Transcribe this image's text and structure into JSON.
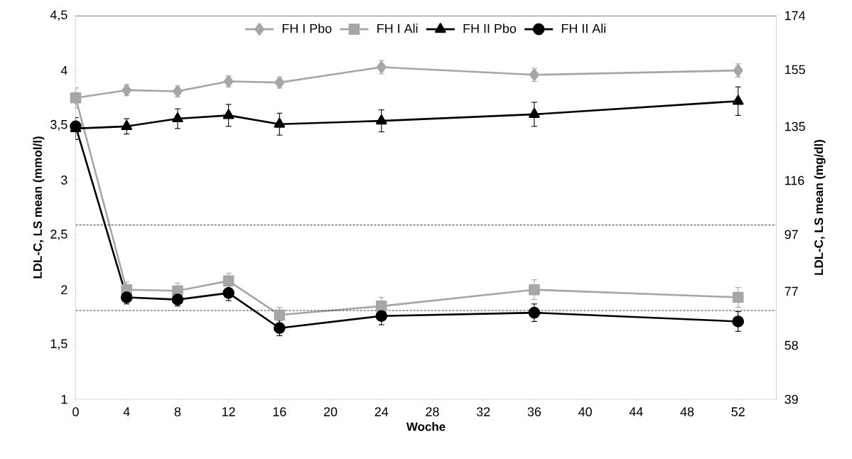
{
  "chart_data": {
    "type": "line",
    "xlabel": "Woche",
    "ylabel": "LDL-C, LS mean (mmol/l)",
    "y2label": "LDL-C, LS mean (mg/dl)",
    "xlim": [
      0,
      55
    ],
    "xticks": [
      0,
      4,
      8,
      12,
      16,
      20,
      24,
      28,
      32,
      36,
      40,
      44,
      48,
      52
    ],
    "ylim": [
      1,
      4.5
    ],
    "yticks": [
      1,
      {
        "value": 1.5,
        "label": "1,5"
      },
      2,
      {
        "value": 2.5,
        "label": "2,5"
      },
      3,
      {
        "value": 3.5,
        "label": "3,5"
      },
      4,
      {
        "value": 4.5,
        "label": "4,5"
      }
    ],
    "y2lim": [
      39,
      174
    ],
    "y2ticks": [
      39,
      58,
      77,
      97,
      116,
      135,
      155,
      174
    ],
    "grid": false,
    "legend": "top",
    "ref_lines": [
      {
        "axis": "y",
        "value": 2.59,
        "color": "#000000",
        "line_style": "dashed"
      },
      {
        "axis": "y",
        "value": 1.81,
        "color": "#000000",
        "line_style": "dashed"
      }
    ],
    "series": [
      {
        "name": "FH I Pbo",
        "color": "#a6a6a6",
        "marker": "diamond",
        "x": [
          0,
          4,
          8,
          12,
          16,
          24,
          36,
          52
        ],
        "values": [
          3.75,
          3.82,
          3.81,
          3.9,
          3.89,
          4.03,
          3.96,
          4.0
        ],
        "errors": [
          0.09,
          0.05,
          0.05,
          0.05,
          0.05,
          0.06,
          0.06,
          0.06
        ]
      },
      {
        "name": "FH I Ali",
        "color": "#a6a6a6",
        "marker": "square",
        "x": [
          0,
          4,
          8,
          12,
          16,
          24,
          36,
          52
        ],
        "values": [
          3.75,
          2.0,
          1.99,
          2.08,
          1.77,
          1.85,
          2.0,
          1.93
        ],
        "errors": [
          0.09,
          0.07,
          0.07,
          0.07,
          0.07,
          0.08,
          0.09,
          0.09
        ]
      },
      {
        "name": "FH II Pbo",
        "color": "#000000",
        "marker": "triangle",
        "x": [
          0,
          4,
          8,
          12,
          16,
          24,
          36,
          52
        ],
        "values": [
          3.47,
          3.49,
          3.56,
          3.59,
          3.51,
          3.54,
          3.6,
          3.72
        ],
        "errors": [
          0.1,
          0.07,
          0.09,
          0.1,
          0.1,
          0.1,
          0.11,
          0.13
        ]
      },
      {
        "name": "FH II Ali",
        "color": "#000000",
        "marker": "circle",
        "x": [
          0,
          4,
          8,
          12,
          16,
          24,
          36,
          52
        ],
        "values": [
          3.49,
          1.93,
          1.91,
          1.97,
          1.65,
          1.76,
          1.79,
          1.71
        ],
        "errors": [
          null,
          0.06,
          0.06,
          0.07,
          0.07,
          0.08,
          0.08,
          0.09
        ]
      }
    ]
  }
}
